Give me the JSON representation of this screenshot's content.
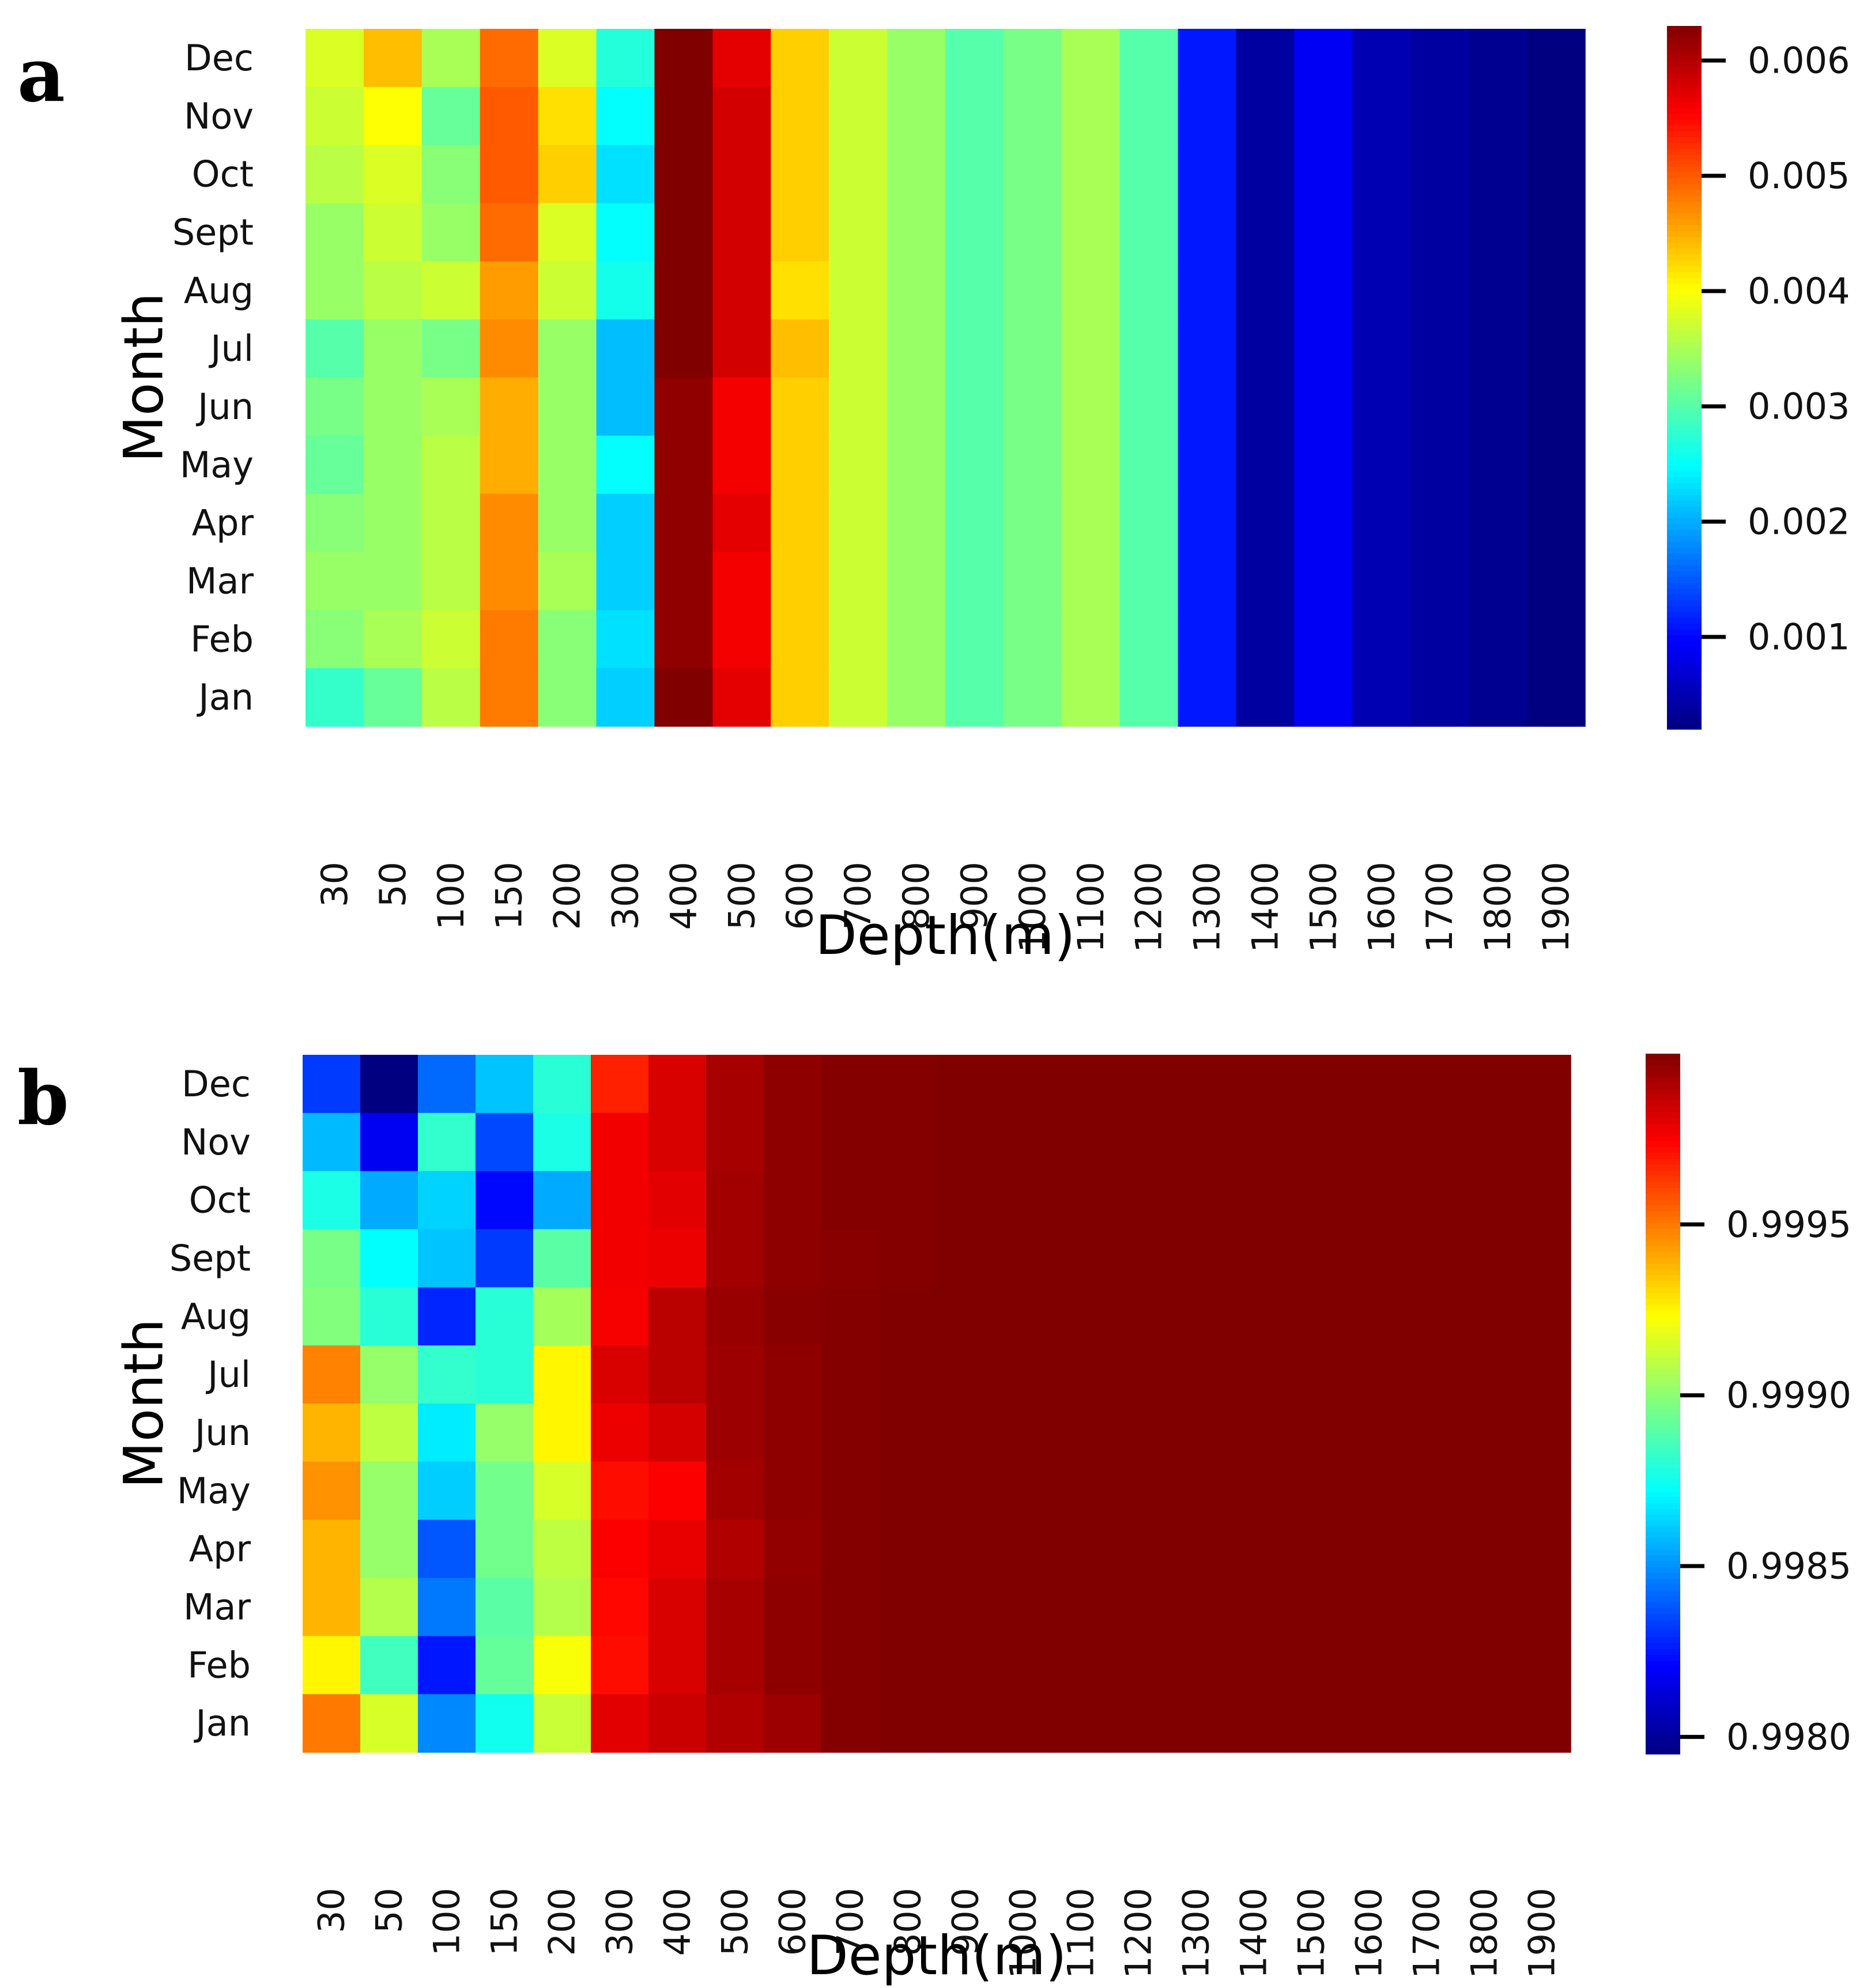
{
  "chart_data": [
    {
      "panel": "a",
      "type": "heatmap",
      "xlabel": "Depth(m)",
      "ylabel": "Month",
      "x_categories": [
        "30",
        "50",
        "100",
        "150",
        "200",
        "300",
        "400",
        "500",
        "600",
        "700",
        "800",
        "900",
        "1000",
        "1100",
        "1200",
        "1300",
        "1400",
        "1500",
        "1600",
        "1700",
        "1800",
        "1900"
      ],
      "y_categories": [
        "Dec",
        "Nov",
        "Oct",
        "Sept",
        "Aug",
        "Jul",
        "Jun",
        "May",
        "Apr",
        "Mar",
        "Feb",
        "Jan"
      ],
      "colormap": "jet",
      "vmin": 0.0002,
      "vmax": 0.0063,
      "colorbar_ticks": [
        0.001,
        0.002,
        0.003,
        0.004,
        0.005,
        0.006
      ],
      "colorbar_tick_labels": [
        "0.001",
        "0.002",
        "0.003",
        "0.004",
        "0.005",
        "0.006"
      ],
      "values": [
        [
          0.0038,
          0.0044,
          0.0035,
          0.0049,
          0.0038,
          0.0027,
          0.0063,
          0.0057,
          0.0043,
          0.0037,
          0.0034,
          0.003,
          0.0032,
          0.0035,
          0.003,
          0.0011,
          0.0004,
          0.0009,
          0.0005,
          0.0004,
          0.0003,
          0.0002
        ],
        [
          0.0037,
          0.004,
          0.0031,
          0.005,
          0.0042,
          0.0025,
          0.0063,
          0.0058,
          0.0043,
          0.0037,
          0.0034,
          0.003,
          0.0032,
          0.0035,
          0.003,
          0.0011,
          0.0004,
          0.0009,
          0.0005,
          0.0004,
          0.0003,
          0.0002
        ],
        [
          0.0036,
          0.0038,
          0.0033,
          0.005,
          0.0043,
          0.0023,
          0.0063,
          0.0058,
          0.0043,
          0.0037,
          0.0034,
          0.003,
          0.0032,
          0.0035,
          0.003,
          0.0011,
          0.0004,
          0.0009,
          0.0005,
          0.0004,
          0.0003,
          0.0002
        ],
        [
          0.0034,
          0.0037,
          0.0034,
          0.0049,
          0.0038,
          0.0025,
          0.0064,
          0.0058,
          0.0043,
          0.0037,
          0.0034,
          0.003,
          0.0032,
          0.0035,
          0.003,
          0.0011,
          0.0004,
          0.0009,
          0.0005,
          0.0004,
          0.0003,
          0.0002
        ],
        [
          0.0034,
          0.0036,
          0.0037,
          0.0046,
          0.0037,
          0.0026,
          0.0064,
          0.0058,
          0.0042,
          0.0037,
          0.0034,
          0.003,
          0.0032,
          0.0035,
          0.003,
          0.0011,
          0.0004,
          0.0009,
          0.0005,
          0.0004,
          0.0003,
          0.0002
        ],
        [
          0.003,
          0.0034,
          0.0032,
          0.0047,
          0.0034,
          0.0021,
          0.0063,
          0.0058,
          0.0044,
          0.0037,
          0.0034,
          0.003,
          0.0032,
          0.0035,
          0.003,
          0.0011,
          0.0004,
          0.0009,
          0.0005,
          0.0004,
          0.0003,
          0.0002
        ],
        [
          0.0032,
          0.0034,
          0.0035,
          0.0045,
          0.0034,
          0.0021,
          0.0062,
          0.0056,
          0.0043,
          0.0037,
          0.0034,
          0.003,
          0.0032,
          0.0035,
          0.003,
          0.0011,
          0.0004,
          0.0009,
          0.0005,
          0.0004,
          0.0003,
          0.0002
        ],
        [
          0.0031,
          0.0034,
          0.0036,
          0.0045,
          0.0034,
          0.0025,
          0.0062,
          0.0056,
          0.0043,
          0.0037,
          0.0034,
          0.003,
          0.0032,
          0.0035,
          0.003,
          0.0011,
          0.0004,
          0.0009,
          0.0005,
          0.0004,
          0.0003,
          0.0002
        ],
        [
          0.0033,
          0.0034,
          0.0036,
          0.0047,
          0.0034,
          0.0022,
          0.0062,
          0.0057,
          0.0043,
          0.0037,
          0.0034,
          0.003,
          0.0032,
          0.0035,
          0.003,
          0.0011,
          0.0004,
          0.0009,
          0.0005,
          0.0004,
          0.0003,
          0.0002
        ],
        [
          0.0034,
          0.0034,
          0.0036,
          0.0047,
          0.0035,
          0.0022,
          0.0062,
          0.0056,
          0.0043,
          0.0037,
          0.0034,
          0.003,
          0.0032,
          0.0035,
          0.003,
          0.0011,
          0.0004,
          0.0009,
          0.0005,
          0.0004,
          0.0003,
          0.0002
        ],
        [
          0.0033,
          0.0035,
          0.0037,
          0.0048,
          0.0033,
          0.0023,
          0.0062,
          0.0056,
          0.0043,
          0.0037,
          0.0034,
          0.003,
          0.0032,
          0.0035,
          0.003,
          0.0011,
          0.0004,
          0.0009,
          0.0005,
          0.0004,
          0.0003,
          0.0002
        ],
        [
          0.0028,
          0.0031,
          0.0036,
          0.0048,
          0.0033,
          0.0022,
          0.0064,
          0.0057,
          0.0043,
          0.0037,
          0.0034,
          0.003,
          0.0032,
          0.0035,
          0.003,
          0.0011,
          0.0004,
          0.0009,
          0.0005,
          0.0004,
          0.0003,
          0.0002
        ]
      ]
    },
    {
      "panel": "b",
      "type": "heatmap",
      "xlabel": "Depth(m)",
      "ylabel": "Month",
      "x_categories": [
        "30",
        "50",
        "100",
        "150",
        "200",
        "300",
        "400",
        "500",
        "600",
        "700",
        "800",
        "900",
        "1000",
        "1100",
        "1200",
        "1300",
        "1400",
        "1500",
        "1600",
        "1700",
        "1800",
        "1900"
      ],
      "y_categories": [
        "Dec",
        "Nov",
        "Oct",
        "Sept",
        "Aug",
        "Jul",
        "Jun",
        "May",
        "Apr",
        "Mar",
        "Feb",
        "Jan"
      ],
      "colormap": "jet",
      "vmin": 0.99795,
      "vmax": 1.0,
      "colorbar_ticks": [
        0.998,
        0.9985,
        0.999,
        0.9995
      ],
      "colorbar_tick_labels": [
        "0.9980",
        "0.9985",
        "0.9990",
        "0.9995"
      ],
      "values": [
        [
          0.99832,
          0.99795,
          0.99842,
          0.9986,
          0.9988,
          0.99968,
          0.99982,
          0.99992,
          0.99997,
          0.99999,
          0.99999,
          1.0,
          1.0,
          1.0,
          1.0,
          1.0,
          1.0,
          1.0,
          1.0,
          1.0,
          1.0,
          1.0
        ],
        [
          0.99858,
          0.99818,
          0.99882,
          0.99835,
          0.99877,
          0.99977,
          0.99982,
          0.99992,
          0.99997,
          0.99999,
          0.99999,
          1.0,
          1.0,
          1.0,
          1.0,
          1.0,
          1.0,
          1.0,
          1.0,
          1.0,
          1.0,
          1.0
        ],
        [
          0.99877,
          0.99855,
          0.99863,
          0.99822,
          0.99855,
          0.99977,
          0.9998,
          0.99993,
          0.99997,
          0.99999,
          0.99999,
          1.0,
          1.0,
          1.0,
          1.0,
          1.0,
          1.0,
          1.0,
          1.0,
          1.0,
          1.0,
          1.0
        ],
        [
          0.99896,
          0.99872,
          0.9986,
          0.99832,
          0.9989,
          0.99977,
          0.99978,
          0.99993,
          0.99997,
          0.99998,
          0.99999,
          1.0,
          1.0,
          1.0,
          1.0,
          1.0,
          1.0,
          1.0,
          1.0,
          1.0,
          1.0,
          1.0
        ],
        [
          0.99898,
          0.9988,
          0.99828,
          0.9988,
          0.99905,
          0.99976,
          0.99988,
          0.99995,
          0.99998,
          0.99999,
          1.0,
          1.0,
          1.0,
          1.0,
          1.0,
          1.0,
          1.0,
          1.0,
          1.0,
          1.0,
          1.0,
          1.0
        ],
        [
          0.99948,
          0.99902,
          0.99882,
          0.9988,
          0.99925,
          0.99982,
          0.99988,
          0.99994,
          0.99997,
          0.99999,
          1.0,
          1.0,
          1.0,
          1.0,
          1.0,
          1.0,
          1.0,
          1.0,
          1.0,
          1.0,
          1.0,
          1.0
        ],
        [
          0.99938,
          0.9991,
          0.99868,
          0.99902,
          0.99925,
          0.99978,
          0.99983,
          0.99994,
          0.99997,
          0.99999,
          1.0,
          1.0,
          1.0,
          1.0,
          1.0,
          1.0,
          1.0,
          1.0,
          1.0,
          1.0,
          1.0,
          1.0
        ],
        [
          0.99945,
          0.99902,
          0.99862,
          0.99895,
          0.99915,
          0.99972,
          0.99975,
          0.99993,
          0.99997,
          0.99999,
          1.0,
          1.0,
          1.0,
          1.0,
          1.0,
          1.0,
          1.0,
          1.0,
          1.0,
          1.0,
          1.0,
          1.0
        ],
        [
          0.99938,
          0.99902,
          0.99838,
          0.99895,
          0.9991,
          0.99975,
          0.99979,
          0.9999,
          0.99996,
          0.99999,
          1.0,
          1.0,
          1.0,
          1.0,
          1.0,
          1.0,
          1.0,
          1.0,
          1.0,
          1.0,
          1.0,
          1.0
        ],
        [
          0.99938,
          0.99908,
          0.99845,
          0.9989,
          0.99908,
          0.99973,
          0.99982,
          0.99992,
          0.99997,
          0.99999,
          1.0,
          1.0,
          1.0,
          1.0,
          1.0,
          1.0,
          1.0,
          1.0,
          1.0,
          1.0,
          1.0,
          1.0
        ],
        [
          0.99925,
          0.99885,
          0.99825,
          0.99892,
          0.99922,
          0.99972,
          0.99982,
          0.99992,
          0.99997,
          0.99999,
          1.0,
          1.0,
          1.0,
          1.0,
          1.0,
          1.0,
          1.0,
          1.0,
          1.0,
          1.0,
          1.0,
          1.0
        ],
        [
          0.9995,
          0.99915,
          0.99848,
          0.99875,
          0.99912,
          0.9998,
          0.99985,
          0.9999,
          0.99994,
          0.99999,
          1.0,
          1.0,
          1.0,
          1.0,
          1.0,
          1.0,
          1.0,
          1.0,
          1.0,
          1.0,
          1.0,
          1.0
        ]
      ]
    }
  ]
}
